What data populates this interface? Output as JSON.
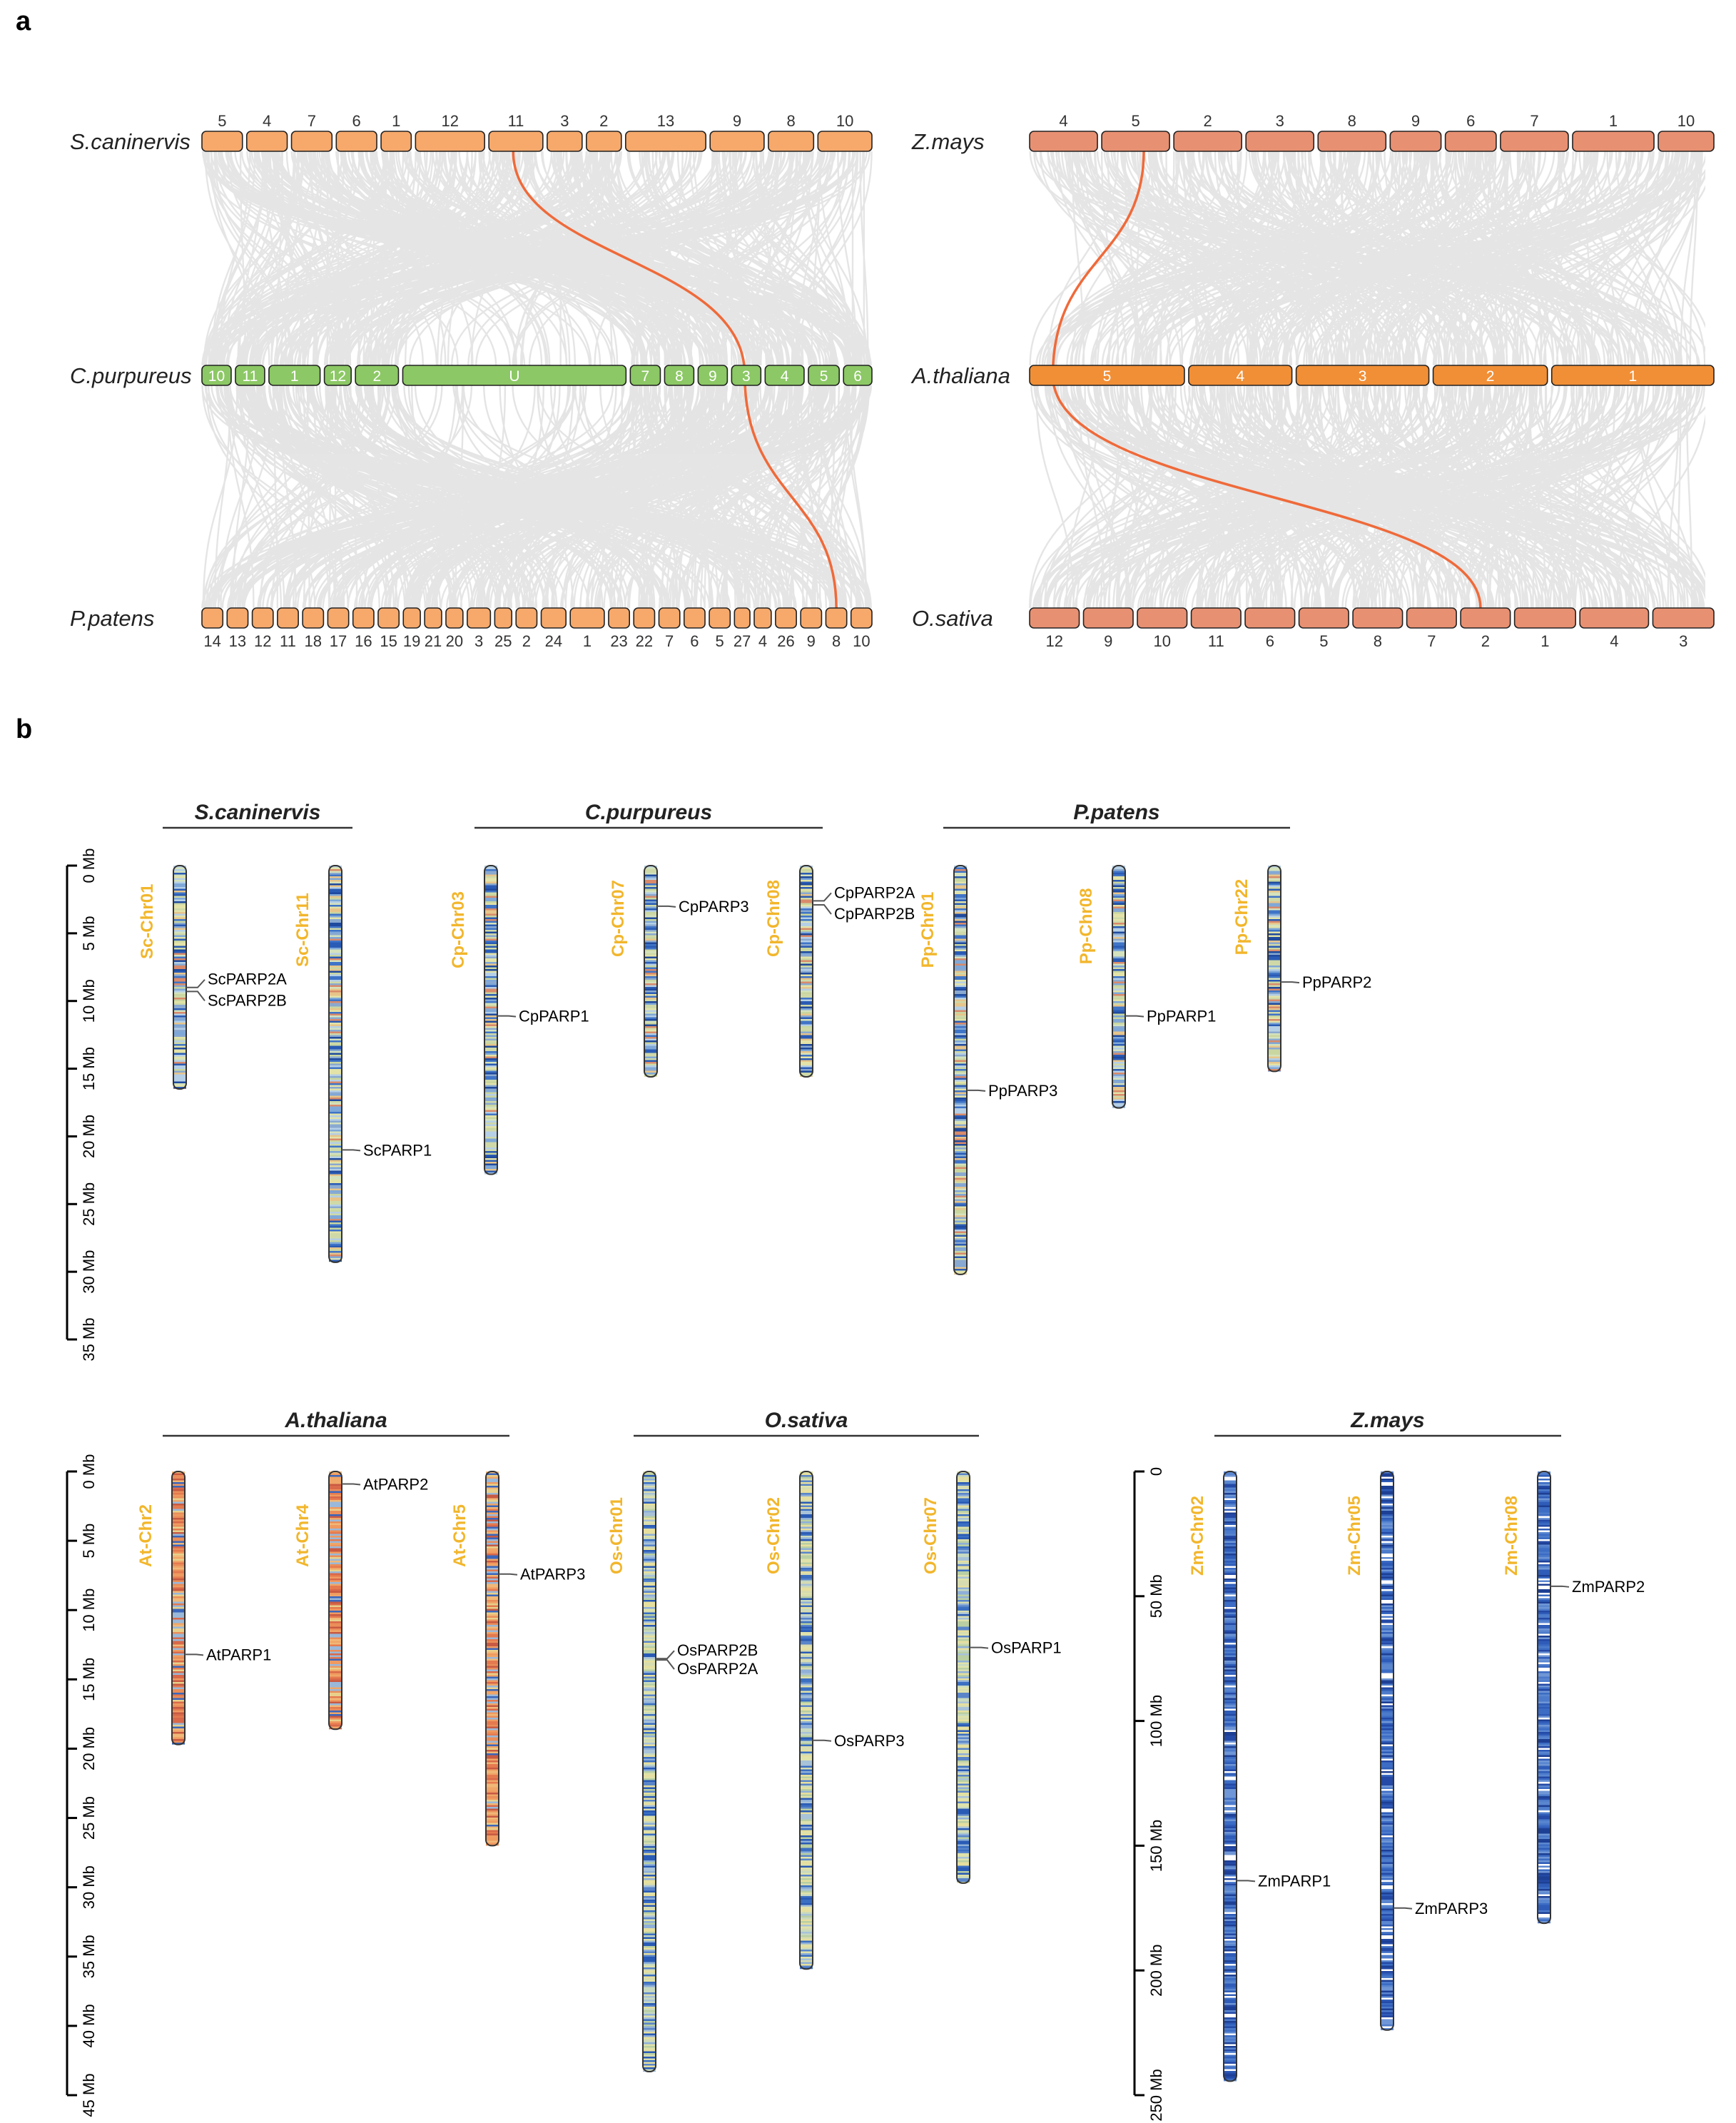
{
  "panels": {
    "a": "a",
    "b": "b"
  },
  "colors": {
    "links": "#dcdcdc",
    "highlight": "#ef6a3a",
    "moss_orange": "#f6a96b",
    "cp_green": "#8cc865",
    "at_orange": "#f18f36",
    "salmon": "#e89072",
    "chr_label": "#f2b62c"
  },
  "synteny": {
    "left": {
      "top": {
        "species": "S.caninervis",
        "chromosomes": [
          "5",
          "4",
          "7",
          "6",
          "1",
          "12",
          "11",
          "3",
          "2",
          "13",
          "9",
          "8",
          "10"
        ]
      },
      "middle": {
        "species": "C.purpureus",
        "chromosomes": [
          "10",
          "11",
          "1",
          "12",
          "2",
          "U",
          "7",
          "8",
          "9",
          "3",
          "4",
          "5",
          "6"
        ]
      },
      "bottom": {
        "species": "P.patens",
        "chromosomes": [
          "14",
          "13",
          "12",
          "11",
          "18",
          "17",
          "16",
          "15",
          "19",
          "21",
          "20",
          "3",
          "25",
          "2",
          "24",
          "1",
          "23",
          "22",
          "7",
          "6",
          "5",
          "27",
          "4",
          "26",
          "9",
          "8",
          "10"
        ]
      }
    },
    "right": {
      "top": {
        "species": "Z.mays",
        "chromosomes": [
          "4",
          "5",
          "2",
          "3",
          "8",
          "9",
          "6",
          "7",
          "1",
          "10"
        ]
      },
      "middle": {
        "species": "A.thaliana",
        "chromosomes": [
          "5",
          "4",
          "3",
          "2",
          "1"
        ]
      },
      "bottom": {
        "species": "O.sativa",
        "chromosomes": [
          "12",
          "9",
          "10",
          "11",
          "6",
          "5",
          "8",
          "7",
          "2",
          "1",
          "4",
          "3"
        ]
      }
    }
  },
  "karyotype": {
    "top": {
      "axis": {
        "ticks": [
          "0 Mb",
          "5 Mb",
          "10 Mb",
          "15 Mb",
          "20 Mb",
          "25 Mb",
          "30 Mb",
          "35 Mb"
        ],
        "max_mb": 35
      },
      "species": [
        {
          "name": "S.caninervis",
          "chromosomes": [
            {
              "label": "Sc-Chr01",
              "length_mb": 16.5,
              "genes": [
                {
                  "name": "ScPARP2A",
                  "pos_mb": 9.0
                },
                {
                  "name": "ScPARP2B",
                  "pos_mb": 9.3
                }
              ]
            },
            {
              "label": "Sc-Chr11",
              "length_mb": 29.3,
              "genes": [
                {
                  "name": "ScPARP1",
                  "pos_mb": 21.0
                }
              ]
            }
          ]
        },
        {
          "name": "C.purpureus",
          "chromosomes": [
            {
              "label": "Cp-Chr03",
              "length_mb": 22.8,
              "genes": [
                {
                  "name": "CpPARP1",
                  "pos_mb": 11.1
                }
              ]
            },
            {
              "label": "Cp-Chr07",
              "length_mb": 15.6,
              "genes": [
                {
                  "name": "CpPARP3",
                  "pos_mb": 3.0
                }
              ]
            },
            {
              "label": "Cp-Chr08",
              "length_mb": 15.6,
              "genes": [
                {
                  "name": "CpPARP2A",
                  "pos_mb": 2.6
                },
                {
                  "name": "CpPARP2B",
                  "pos_mb": 2.9
                }
              ]
            }
          ]
        },
        {
          "name": "P.patens",
          "chromosomes": [
            {
              "label": "Pp-Chr01",
              "length_mb": 30.2,
              "genes": [
                {
                  "name": "PpPARP3",
                  "pos_mb": 16.6
                }
              ]
            },
            {
              "label": "Pp-Chr08",
              "length_mb": 17.9,
              "genes": [
                {
                  "name": "PpPARP1",
                  "pos_mb": 11.1
                }
              ]
            },
            {
              "label": "Pp-Chr22",
              "length_mb": 15.2,
              "genes": [
                {
                  "name": "PpPARP2",
                  "pos_mb": 8.6
                }
              ]
            }
          ]
        }
      ]
    },
    "bottom": {
      "axis_left": {
        "ticks": [
          "0 Mb",
          "5 Mb",
          "10 Mb",
          "15 Mb",
          "20 Mb",
          "25 Mb",
          "30 Mb",
          "35 Mb",
          "40 Mb",
          "45 Mb"
        ],
        "max_mb": 45
      },
      "axis_right": {
        "ticks": [
          "0",
          "50 Mb",
          "100 Mb",
          "150 Mb",
          "200 Mb",
          "250 Mb"
        ],
        "max_mb": 250
      },
      "species": [
        {
          "name": "A.thaliana",
          "chromosomes": [
            {
              "label": "At-Chr2",
              "length_mb": 19.7,
              "genes": [
                {
                  "name": "AtPARP1",
                  "pos_mb": 13.2
                }
              ]
            },
            {
              "label": "At-Chr4",
              "length_mb": 18.6,
              "genes": [
                {
                  "name": "AtPARP2",
                  "pos_mb": 0.9
                }
              ]
            },
            {
              "label": "At-Chr5",
              "length_mb": 27.0,
              "genes": [
                {
                  "name": "AtPARP3",
                  "pos_mb": 7.4
                }
              ]
            }
          ]
        },
        {
          "name": "O.sativa",
          "chromosomes": [
            {
              "label": "Os-Chr01",
              "length_mb": 43.3,
              "genes": [
                {
                  "name": "OsPARP2B",
                  "pos_mb": 13.5
                },
                {
                  "name": "OsPARP2A",
                  "pos_mb": 13.6
                }
              ]
            },
            {
              "label": "Os-Chr02",
              "length_mb": 35.9,
              "genes": [
                {
                  "name": "OsPARP3",
                  "pos_mb": 19.4
                }
              ]
            },
            {
              "label": "Os-Chr07",
              "length_mb": 29.7,
              "genes": [
                {
                  "name": "OsPARP1",
                  "pos_mb": 12.7
                }
              ]
            }
          ]
        },
        {
          "name": "Z.mays",
          "chromosomes": [
            {
              "label": "Zm-Chr02",
              "length_mb": 244.4,
              "genes": [
                {
                  "name": "ZmPARP1",
                  "pos_mb": 164.0
                }
              ]
            },
            {
              "label": "Zm-Chr05",
              "length_mb": 223.9,
              "genes": [
                {
                  "name": "ZmPARP3",
                  "pos_mb": 175.0
                }
              ]
            },
            {
              "label": "Zm-Chr08",
              "length_mb": 181.1,
              "genes": [
                {
                  "name": "ZmPARP2",
                  "pos_mb": 46.0
                }
              ]
            }
          ]
        }
      ]
    }
  }
}
